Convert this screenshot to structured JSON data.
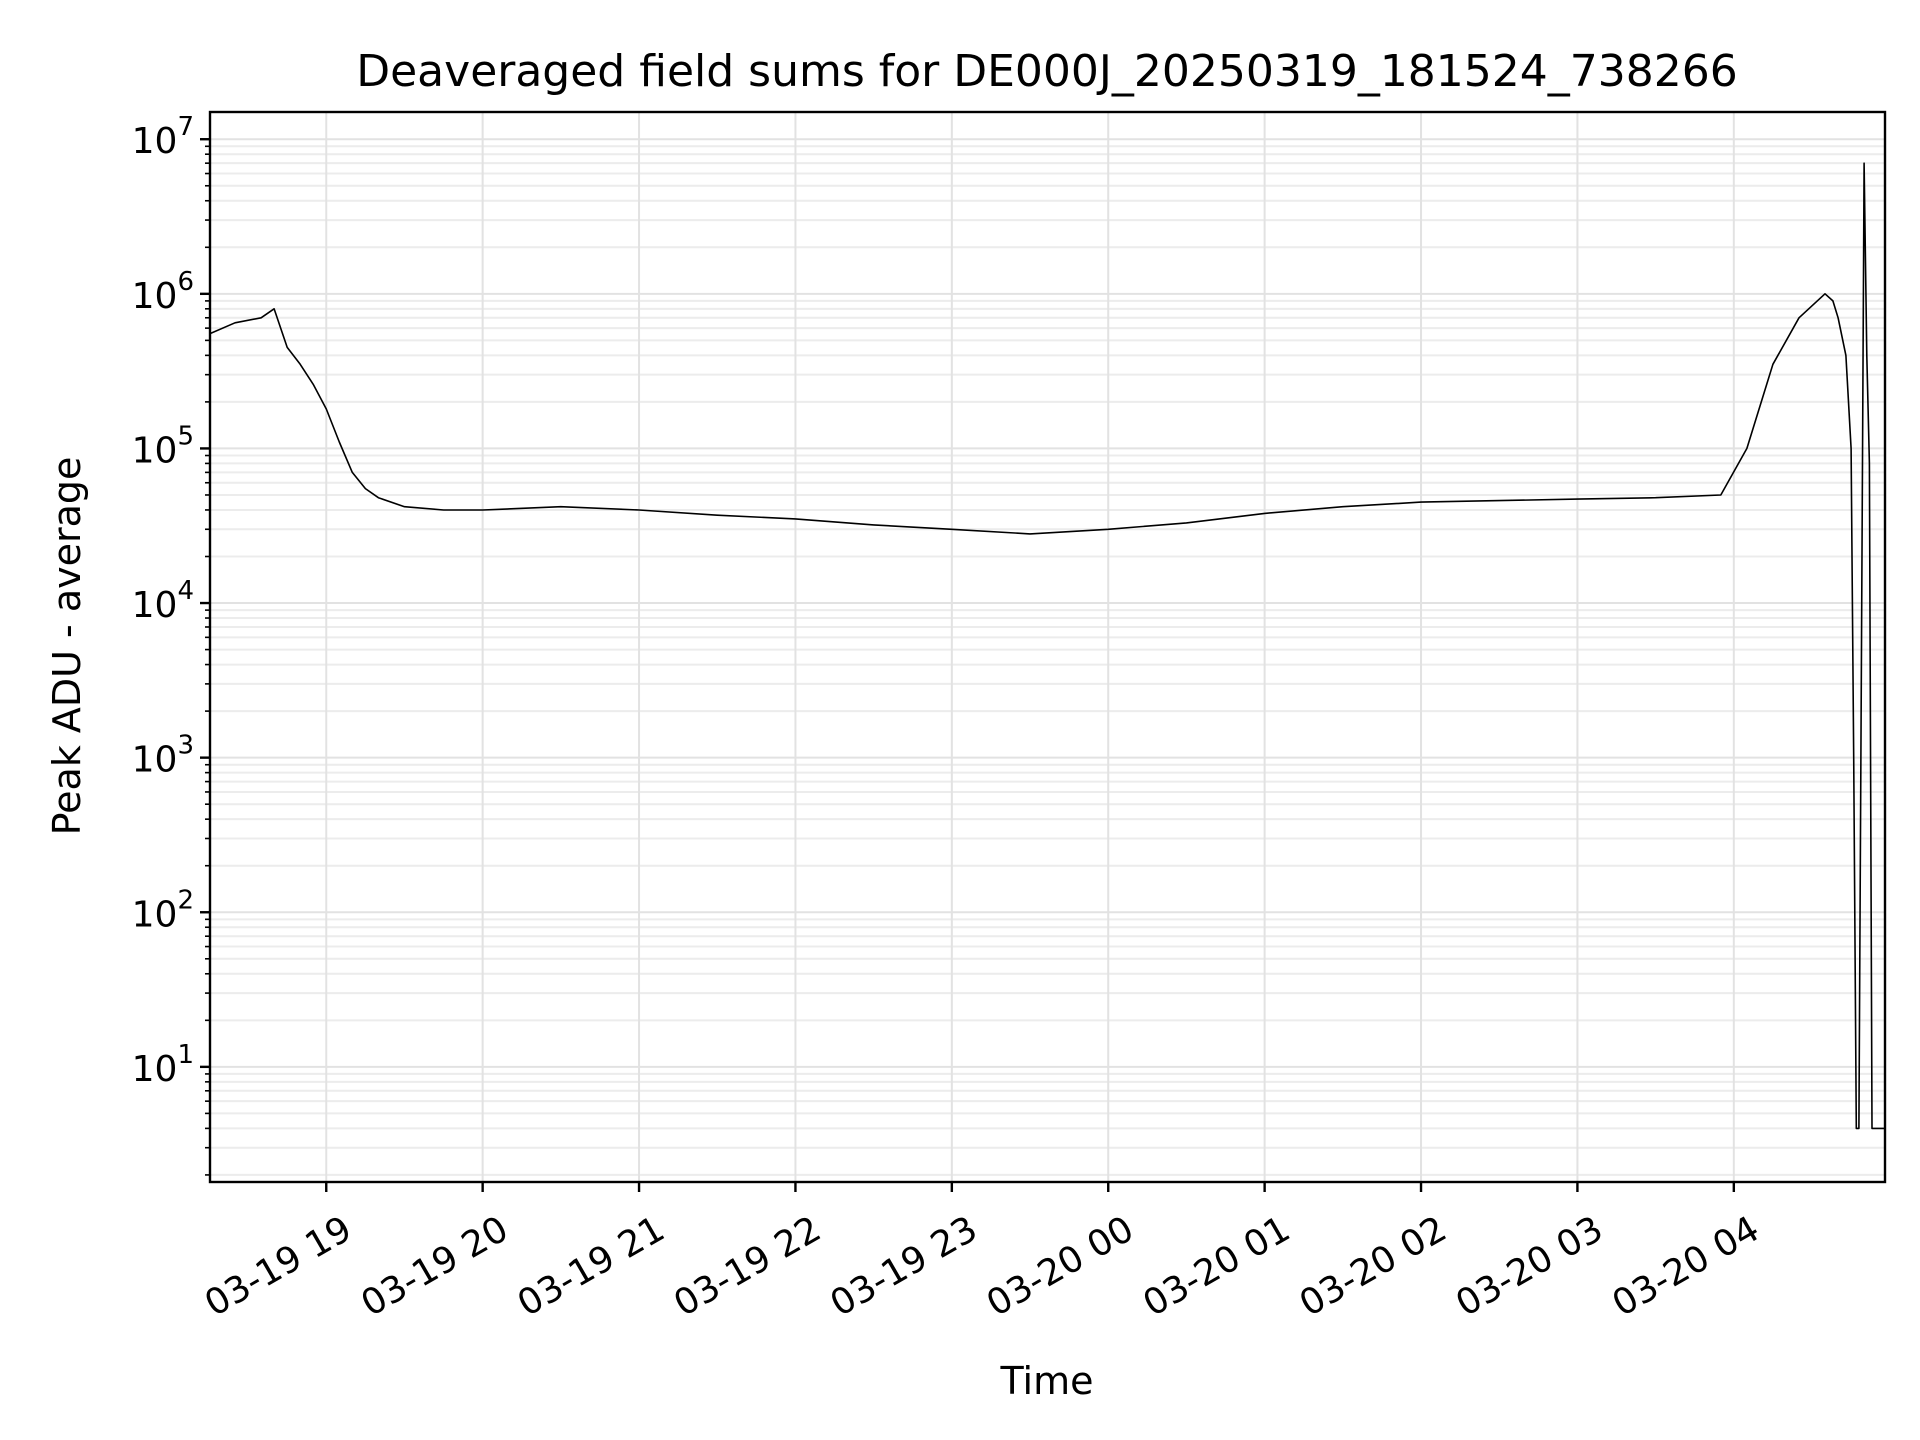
{
  "chart_data": {
    "type": "line",
    "title": "Deaveraged field sums for DE000J_20250319_181524_738266",
    "xlabel": "Time",
    "ylabel": "Peak ADU - average",
    "y_scale": "log",
    "ylim": [
      1.8,
      15000000
    ],
    "xlim": [
      "2025-03-19 18:15:24",
      "2025-03-20 04:58:00"
    ],
    "grid": true,
    "line_color": "#000000",
    "x_ticks": [
      {
        "value": "2025-03-19 19:00",
        "label": "03-19 19"
      },
      {
        "value": "2025-03-19 20:00",
        "label": "03-19 20"
      },
      {
        "value": "2025-03-19 21:00",
        "label": "03-19 21"
      },
      {
        "value": "2025-03-19 22:00",
        "label": "03-19 22"
      },
      {
        "value": "2025-03-19 23:00",
        "label": "03-19 23"
      },
      {
        "value": "2025-03-20 00:00",
        "label": "03-20 00"
      },
      {
        "value": "2025-03-20 01:00",
        "label": "03-20 01"
      },
      {
        "value": "2025-03-20 02:00",
        "label": "03-20 02"
      },
      {
        "value": "2025-03-20 03:00",
        "label": "03-20 03"
      },
      {
        "value": "2025-03-20 04:00",
        "label": "03-20 04"
      }
    ],
    "y_ticks": [
      {
        "value": 10,
        "base": "10",
        "exp": "1"
      },
      {
        "value": 100,
        "base": "10",
        "exp": "2"
      },
      {
        "value": 1000,
        "base": "10",
        "exp": "3"
      },
      {
        "value": 10000,
        "base": "10",
        "exp": "4"
      },
      {
        "value": 100000,
        "base": "10",
        "exp": "5"
      },
      {
        "value": 1000000,
        "base": "10",
        "exp": "6"
      },
      {
        "value": 10000000,
        "base": "10",
        "exp": "7"
      }
    ],
    "series": [
      {
        "x": [
          "2025-03-19 18:15",
          "2025-03-19 18:25",
          "2025-03-19 18:35",
          "2025-03-19 18:40",
          "2025-03-19 18:45",
          "2025-03-19 18:50",
          "2025-03-19 18:55",
          "2025-03-19 19:00",
          "2025-03-19 19:05",
          "2025-03-19 19:10",
          "2025-03-19 19:15",
          "2025-03-19 19:20",
          "2025-03-19 19:30",
          "2025-03-19 19:45",
          "2025-03-19 20:00",
          "2025-03-19 20:30",
          "2025-03-19 21:00",
          "2025-03-19 21:30",
          "2025-03-19 22:00",
          "2025-03-19 22:30",
          "2025-03-19 23:00",
          "2025-03-19 23:30",
          "2025-03-20 00:00",
          "2025-03-20 00:30",
          "2025-03-20 01:00",
          "2025-03-20 01:30",
          "2025-03-20 02:00",
          "2025-03-20 02:30",
          "2025-03-20 03:00",
          "2025-03-20 03:30",
          "2025-03-20 03:55",
          "2025-03-20 04:05",
          "2025-03-20 04:15",
          "2025-03-20 04:25",
          "2025-03-20 04:35",
          "2025-03-20 04:38",
          "2025-03-20 04:40",
          "2025-03-20 04:43",
          "2025-03-20 04:45",
          "2025-03-20 04:46",
          "2025-03-20 04:47",
          "2025-03-20 04:48",
          "2025-03-20 04:50",
          "2025-03-20 04:51",
          "2025-03-20 04:52",
          "2025-03-20 04:53",
          "2025-03-20 04:55",
          "2025-03-20 04:58"
        ],
        "y": [
          550000,
          650000,
          700000,
          800000,
          450000,
          350000,
          260000,
          180000,
          110000,
          70000,
          55000,
          48000,
          42000,
          40000,
          40000,
          42000,
          40000,
          37000,
          35000,
          32000,
          30000,
          28000,
          30000,
          33000,
          38000,
          42000,
          45000,
          46000,
          47000,
          48000,
          50000,
          100000,
          350000,
          700000,
          1000000,
          900000,
          700000,
          400000,
          100000,
          1000,
          4,
          4,
          7000000,
          400000,
          80000,
          4,
          4,
          4
        ]
      }
    ]
  }
}
